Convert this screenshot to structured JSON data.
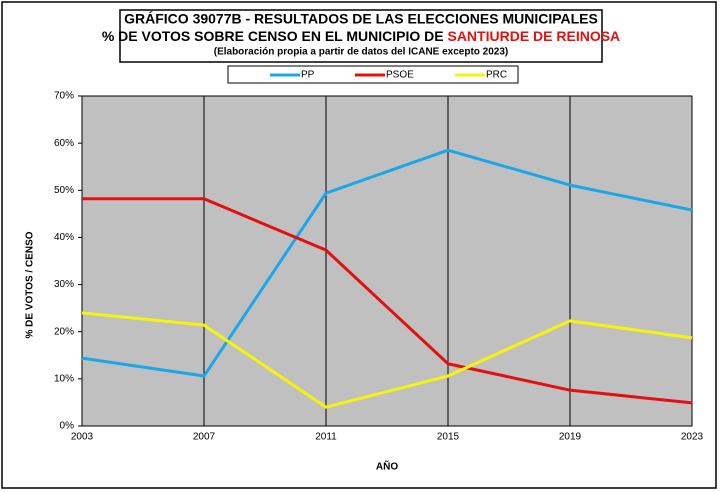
{
  "chart_data": {
    "type": "line",
    "title_lines": [
      "GRÁFICO 39077B - RESULTADOS DE LAS ELECCIONES MUNICIPALES",
      "% DE VOTOS SOBRE CENSO EN EL MUNICIPIO DE "
    ],
    "title_highlight": "SANTIURDE DE REINOSA",
    "subtitle": "(Elaboración propia a partir de datos del ICANE excepto 2023)",
    "xlabel": "AÑO",
    "ylabel": "% DE VOTOS / CENSO",
    "x": [
      2003,
      2007,
      2011,
      2015,
      2019,
      2023
    ],
    "series": [
      {
        "name": "PP",
        "color": "#1aa7e8",
        "values": [
          14.4,
          10.6,
          49.4,
          58.5,
          51.1,
          45.8
        ]
      },
      {
        "name": "PSOE",
        "color": "#e31010",
        "values": [
          48.2,
          48.2,
          37.3,
          13.2,
          7.6,
          4.9
        ]
      },
      {
        "name": "PRC",
        "color": "#f5f50a",
        "values": [
          24.0,
          21.4,
          4.0,
          10.6,
          22.3,
          18.7
        ]
      }
    ],
    "xlim": [
      2003,
      2023
    ],
    "xticks": [
      2003,
      2007,
      2011,
      2015,
      2019,
      2023
    ],
    "ylim": [
      0,
      70
    ],
    "yticks": [
      {
        "value": 0,
        "label": "0%"
      },
      {
        "value": 10,
        "label": "10%"
      },
      {
        "value": 20,
        "label": "20%"
      },
      {
        "value": 30,
        "label": "30%"
      },
      {
        "value": 40,
        "label": "40%"
      },
      {
        "value": 50,
        "label": "50%"
      },
      {
        "value": 60,
        "label": "60%"
      },
      {
        "value": 70,
        "label": "70%"
      }
    ],
    "grid": true
  }
}
